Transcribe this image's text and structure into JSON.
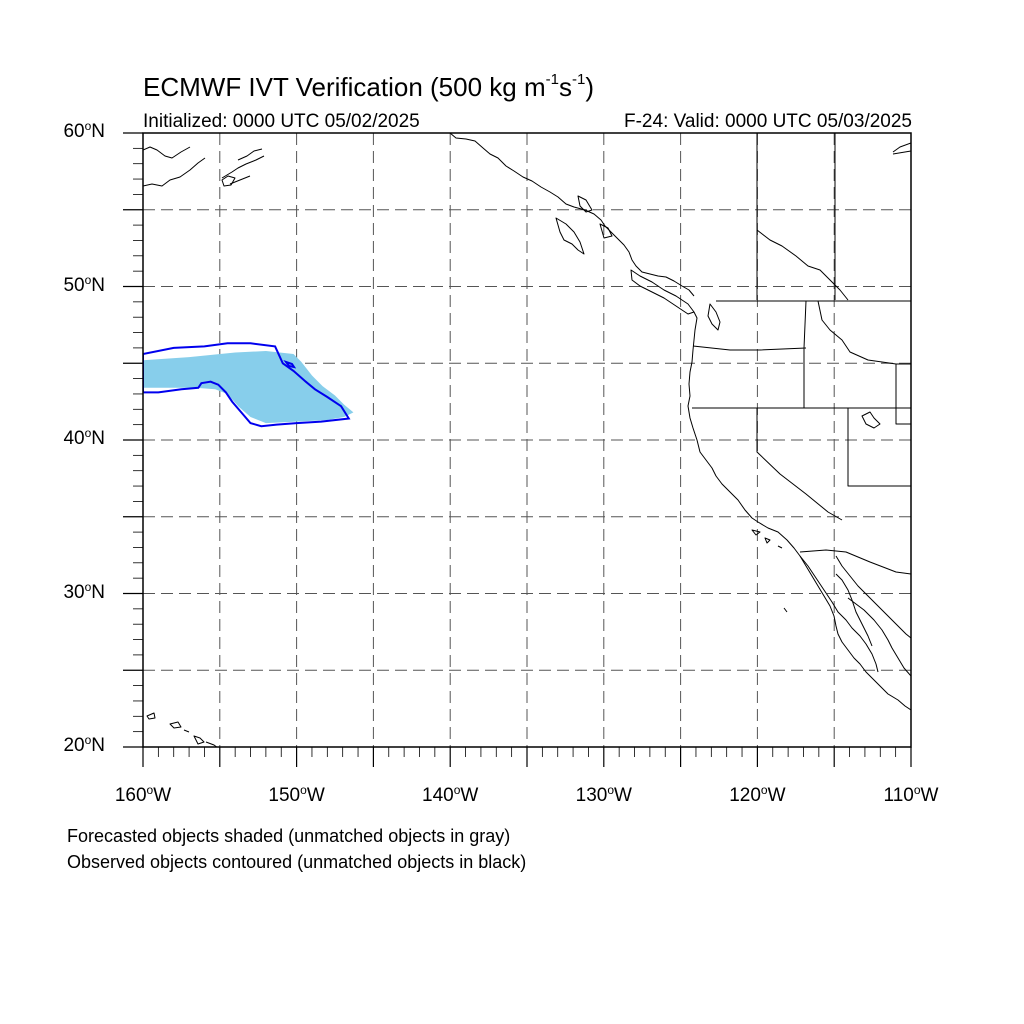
{
  "header": {
    "title_prefix": "ECMWF IVT Verification (500 kg m",
    "title_sup1": "-1",
    "title_mid": "s",
    "title_sup2": "-1",
    "title_suffix": ")",
    "initialized": "Initialized: 0000 UTC 05/02/2025",
    "valid": "F-24: Valid: 0000 UTC 05/03/2025"
  },
  "axes": {
    "lat_labels": [
      {
        "value": 60,
        "text": "60",
        "hemi": "N"
      },
      {
        "value": 50,
        "text": "50",
        "hemi": "N"
      },
      {
        "value": 40,
        "text": "40",
        "hemi": "N"
      },
      {
        "value": 30,
        "text": "30",
        "hemi": "N"
      },
      {
        "value": 20,
        "text": "20",
        "hemi": "N"
      }
    ],
    "lon_labels": [
      {
        "value": -160,
        "text": "160",
        "hemi": "W"
      },
      {
        "value": -150,
        "text": "150",
        "hemi": "W"
      },
      {
        "value": -140,
        "text": "140",
        "hemi": "W"
      },
      {
        "value": -130,
        "text": "130",
        "hemi": "W"
      },
      {
        "value": -120,
        "text": "120",
        "hemi": "W"
      },
      {
        "value": -110,
        "text": "110",
        "hemi": "W"
      }
    ],
    "lon_range": [
      -160,
      -110
    ],
    "lat_range": [
      20,
      60
    ],
    "grid_spacing_deg": 5,
    "grid_style": "dashed"
  },
  "colors": {
    "forecast_fill": "#87ceeb",
    "observed_contour": "#0000ee",
    "coast": "#000000",
    "grid": "#555555"
  },
  "objects": {
    "forecast_object_lonlat": [
      [
        -160,
        45.2
      ],
      [
        -157,
        45.4
      ],
      [
        -154,
        45.7
      ],
      [
        -152,
        45.8
      ],
      [
        -150.2,
        45.6
      ],
      [
        -149.7,
        45.1
      ],
      [
        -149,
        44.2
      ],
      [
        -148.3,
        43.5
      ],
      [
        -147.5,
        42.9
      ],
      [
        -146.9,
        42.3
      ],
      [
        -146.3,
        41.8
      ],
      [
        -146.9,
        41.5
      ],
      [
        -148,
        41.3
      ],
      [
        -150,
        41.2
      ],
      [
        -152,
        41.1
      ],
      [
        -153,
        41.5
      ],
      [
        -153.8,
        42.2
      ],
      [
        -154.5,
        43.0
      ],
      [
        -155.3,
        43.3
      ],
      [
        -156.6,
        43.4
      ],
      [
        -158,
        43.4
      ],
      [
        -160,
        43.4
      ]
    ],
    "observed_object_lonlat": [
      [
        -160,
        45.6
      ],
      [
        -158,
        46.0
      ],
      [
        -156,
        46.1
      ],
      [
        -154.5,
        46.3
      ],
      [
        -153,
        46.3
      ],
      [
        -151.4,
        46.1
      ],
      [
        -150.9,
        45.0
      ],
      [
        -150.2,
        44.5
      ],
      [
        -149.4,
        43.8
      ],
      [
        -148.8,
        43.3
      ],
      [
        -148,
        42.8
      ],
      [
        -147.1,
        42.2
      ],
      [
        -146.6,
        41.4
      ],
      [
        -148.4,
        41.2
      ],
      [
        -150,
        41.1
      ],
      [
        -151.3,
        41.0
      ],
      [
        -152.3,
        40.9
      ],
      [
        -153,
        41.1
      ],
      [
        -153.6,
        41.8
      ],
      [
        -154.2,
        42.5
      ],
      [
        -154.6,
        43.1
      ],
      [
        -155.1,
        43.6
      ],
      [
        -155.6,
        43.8
      ],
      [
        -156.2,
        43.7
      ],
      [
        -156.4,
        43.4
      ],
      [
        -157.5,
        43.3
      ],
      [
        -159,
        43.1
      ],
      [
        -160,
        43.1
      ]
    ]
  },
  "footer": {
    "line1": "Forecasted objects shaded (unmatched objects in gray)",
    "line2": "Observed objects contoured (unmatched objects in black)"
  }
}
